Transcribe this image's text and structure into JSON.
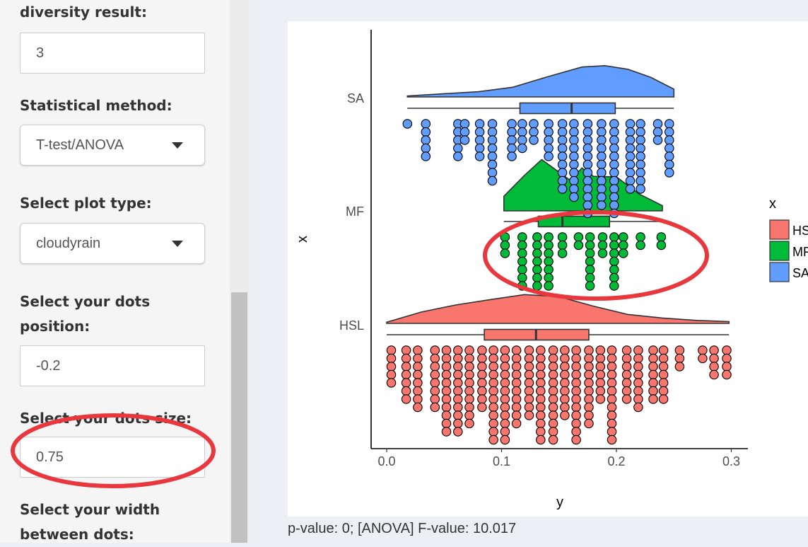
{
  "sidebar": {
    "diversity_label": "diversity result:",
    "diversity_value": "3",
    "stat_label": "Statistical method:",
    "stat_value": "T-test/ANOVA",
    "plot_type_label": "Select plot type:",
    "plot_type_value": "cloudyrain",
    "dots_pos_label_1": "Select your dots",
    "dots_pos_label_2": "position:",
    "dots_pos_value": "-0.2",
    "dots_size_label": "Select your dots size:",
    "dots_size_value": "0.75",
    "width_label_1": "Select your width",
    "width_label_2": "between dots:"
  },
  "status_text": "p-value: 0; [ANOVA] F-value: 10.017",
  "annotation_color": "#e8383d",
  "chart_data": {
    "type": "raincloud",
    "xlabel": "y",
    "ylabel": "x",
    "xlim": [
      -0.014,
      0.312
    ],
    "x_ticks": [
      0.0,
      0.1,
      0.2,
      0.3
    ],
    "x_tick_labels": [
      "0.0",
      "0.1",
      "0.2",
      "0.3"
    ],
    "categories": [
      "HSL",
      "MF",
      "SA"
    ],
    "legend_title": "x",
    "legend_labels": [
      "HSL",
      "MF",
      "SA"
    ],
    "legend_position": "right",
    "colors": {
      "HSL": "#f8766d",
      "MF": "#00ba38",
      "SA": "#619cff"
    },
    "series": [
      {
        "name": "SA",
        "box": {
          "min": 0.018,
          "q1": 0.116,
          "median": 0.161,
          "q3": 0.199,
          "max": 0.25
        },
        "density": [
          [
            0.018,
            0.03
          ],
          [
            0.05,
            0.1
          ],
          [
            0.08,
            0.16
          ],
          [
            0.11,
            0.3
          ],
          [
            0.14,
            0.62
          ],
          [
            0.17,
            0.92
          ],
          [
            0.19,
            0.96
          ],
          [
            0.21,
            0.85
          ],
          [
            0.23,
            0.6
          ],
          [
            0.25,
            0.24
          ]
        ],
        "dots": [
          [
            0.018,
            1
          ],
          [
            0.034,
            5
          ],
          [
            0.062,
            5
          ],
          [
            0.068,
            3
          ],
          [
            0.081,
            5
          ],
          [
            0.092,
            8
          ],
          [
            0.109,
            5
          ],
          [
            0.118,
            4
          ],
          [
            0.128,
            3
          ],
          [
            0.141,
            5
          ],
          [
            0.153,
            9
          ],
          [
            0.163,
            10
          ],
          [
            0.175,
            12
          ],
          [
            0.187,
            11
          ],
          [
            0.198,
            12
          ],
          [
            0.212,
            9
          ],
          [
            0.221,
            9
          ],
          [
            0.236,
            3
          ],
          [
            0.246,
            7
          ]
        ]
      },
      {
        "name": "MF",
        "box": {
          "min": 0.102,
          "q1": 0.132,
          "median": 0.153,
          "q3": 0.194,
          "max": 0.24
        },
        "density": [
          [
            0.102,
            0.28
          ],
          [
            0.12,
            0.68
          ],
          [
            0.135,
            0.98
          ],
          [
            0.145,
            0.82
          ],
          [
            0.16,
            0.58
          ],
          [
            0.17,
            0.82
          ],
          [
            0.18,
            0.66
          ],
          [
            0.2,
            0.65
          ],
          [
            0.22,
            0.32
          ],
          [
            0.24,
            0.1
          ]
        ],
        "dots": [
          [
            0.103,
            3
          ],
          [
            0.118,
            7
          ],
          [
            0.131,
            7
          ],
          [
            0.141,
            7
          ],
          [
            0.153,
            3
          ],
          [
            0.167,
            2
          ],
          [
            0.177,
            7
          ],
          [
            0.188,
            3
          ],
          [
            0.198,
            7
          ],
          [
            0.206,
            3
          ],
          [
            0.221,
            2
          ],
          [
            0.239,
            2
          ]
        ]
      },
      {
        "name": "HSL",
        "box": {
          "min": 0.0,
          "q1": 0.085,
          "median": 0.13,
          "q3": 0.176,
          "max": 0.298
        },
        "density": [
          [
            0.0,
            0.04
          ],
          [
            0.03,
            0.38
          ],
          [
            0.06,
            0.62
          ],
          [
            0.09,
            0.8
          ],
          [
            0.12,
            0.97
          ],
          [
            0.15,
            0.9
          ],
          [
            0.18,
            0.58
          ],
          [
            0.21,
            0.3
          ],
          [
            0.24,
            0.18
          ],
          [
            0.27,
            0.1
          ],
          [
            0.298,
            0.06
          ]
        ],
        "dots": [
          [
            0.004,
            5
          ],
          [
            0.017,
            7
          ],
          [
            0.027,
            8
          ],
          [
            0.042,
            8
          ],
          [
            0.052,
            11
          ],
          [
            0.062,
            11
          ],
          [
            0.072,
            10
          ],
          [
            0.083,
            8
          ],
          [
            0.093,
            12
          ],
          [
            0.103,
            12
          ],
          [
            0.113,
            10
          ],
          [
            0.124,
            9
          ],
          [
            0.134,
            12
          ],
          [
            0.145,
            12
          ],
          [
            0.155,
            9
          ],
          [
            0.165,
            12
          ],
          [
            0.176,
            10
          ],
          [
            0.186,
            7
          ],
          [
            0.196,
            12
          ],
          [
            0.209,
            7
          ],
          [
            0.219,
            8
          ],
          [
            0.232,
            7
          ],
          [
            0.241,
            7
          ],
          [
            0.255,
            3
          ],
          [
            0.275,
            2
          ],
          [
            0.285,
            4
          ],
          [
            0.296,
            4
          ]
        ]
      }
    ]
  }
}
